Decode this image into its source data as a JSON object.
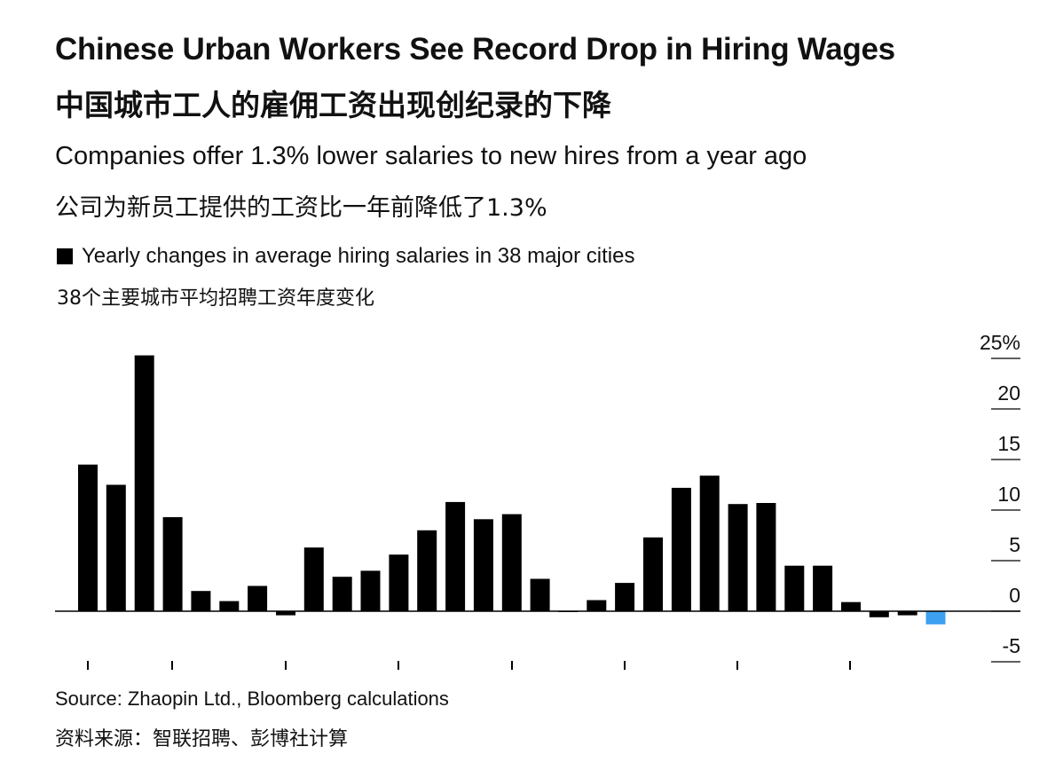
{
  "title": "Chinese Urban Workers See Record Drop in Hiring Wages",
  "title_zh": "中国城市工人的雇佣工资出现创纪录的下降",
  "subtitle": "Companies offer 1.3% lower salaries to new hires from a year ago",
  "subtitle_zh": "公司为新员工提供的工资比一年前降低了1.3%",
  "legend_label": "Yearly changes in average hiring salaries in 38 major cities",
  "legend_label_zh": "38个主要城市平均招聘工资年度变化",
  "source": "Source: Zhaopin Ltd., Bloomberg calculations",
  "source_zh": "资料来源：智联招聘、彭博社计算",
  "chart_data": {
    "type": "bar",
    "title": "Chinese Urban Workers See Record Drop in Hiring Wages",
    "ylabel": "",
    "ylim": [
      -5,
      25
    ],
    "yticks": [
      25,
      20,
      15,
      10,
      5,
      0,
      -5
    ],
    "ytick_labels": [
      "25%",
      "20",
      "15",
      "10",
      "5",
      "0",
      "-5"
    ],
    "grid": false,
    "legend": "top-left",
    "x_tick_count": 8,
    "values": [
      14.5,
      12.5,
      25.3,
      9.3,
      2.0,
      1.0,
      2.5,
      -0.4,
      6.3,
      3.4,
      4.0,
      5.6,
      8.0,
      10.8,
      9.1,
      9.6,
      3.2,
      0.0,
      1.1,
      2.8,
      7.3,
      12.2,
      13.4,
      10.6,
      10.7,
      4.5,
      4.5,
      0.9,
      -0.6,
      -0.4,
      -1.3
    ],
    "colors": {
      "default": "#000000",
      "highlight": "#3ea0f0",
      "axis": "#000000"
    },
    "highlight_index": 30
  }
}
